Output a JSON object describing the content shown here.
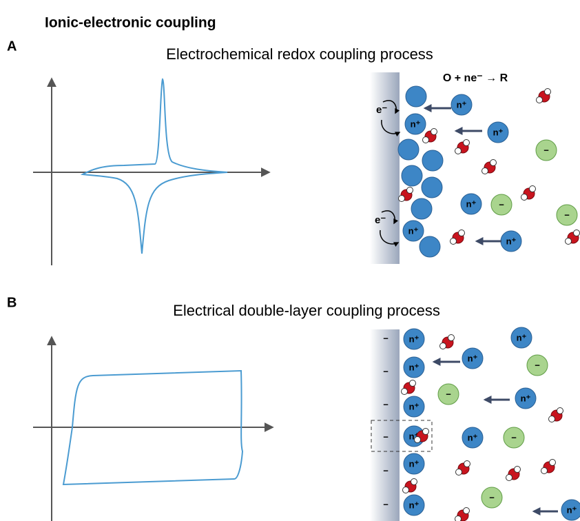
{
  "header": {
    "title": "Ionic-electronic coupling"
  },
  "panels": [
    {
      "label": "A",
      "title": "Electrochemical redox coupling process",
      "equation": "O + ne⁻ → R"
    },
    {
      "label": "B",
      "title": "Electrical double-layer coupling process"
    }
  ],
  "symbols": {
    "cation": "n⁺",
    "anion": "−",
    "electron": "e⁻",
    "surface_charge": "−"
  }
}
